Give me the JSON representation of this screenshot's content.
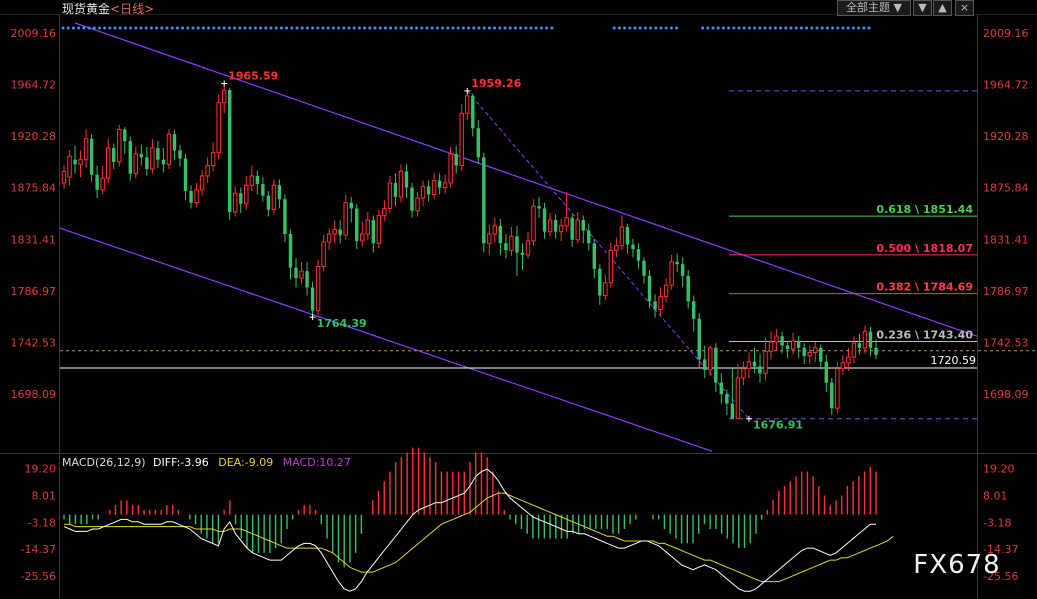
{
  "header": {
    "instrument": "现货黄金",
    "period": "<日线>",
    "theme_label": "全部主题",
    "theme_arrow": "▼",
    "btn_sort_desc": "▼",
    "btn_sort_asc": "▲",
    "btn_close": "×"
  },
  "watermark": "FX678",
  "colors": {
    "up": "#ff3030",
    "down": "#36c06a",
    "channel": "#8a3dff",
    "axis_text": "#e03a3a",
    "fib_0618": "#47d147",
    "fib_0500": "#ff2d5a",
    "fib_0382": "#ff3f3f",
    "fib_0236": "#bbbbbb",
    "diff_line": "#ffffff",
    "dea_line": "#e6d62a",
    "background": "#000000"
  },
  "chart_data": [
    {
      "type": "candlestick",
      "title": "现货黄金<日线>",
      "y_axis_labels": [
        "2009.16",
        "1964.72",
        "1920.28",
        "1875.84",
        "1831.41",
        "1786.97",
        "1742.53",
        "1698.09"
      ],
      "ylim": [
        1650,
        2022
      ],
      "annotations": {
        "high_a": "1965.59",
        "high_b": "1959.26",
        "low_a": "1764.39",
        "low_b": "1676.91",
        "price_line": "1720.59"
      },
      "fibonacci": [
        {
          "label": "0.618 \\ 1851.44",
          "value": 1851.44
        },
        {
          "label": "0.500 \\ 1818.07",
          "value": 1818.07
        },
        {
          "label": "0.382 \\ 1784.69",
          "value": 1784.69
        },
        {
          "label": "0.236 \\ 1743.40",
          "value": 1743.4
        }
      ],
      "fib_top": 1959.26,
      "fib_bottom": 1676.91,
      "dashed_price": 1735.5,
      "candles": [
        [
          1880,
          1890,
          1875,
          1895
        ],
        [
          1885,
          1903,
          1878,
          1908
        ],
        [
          1900,
          1896,
          1888,
          1912
        ],
        [
          1896,
          1900,
          1885,
          1908
        ],
        [
          1900,
          1918,
          1893,
          1926
        ],
        [
          1918,
          1887,
          1881,
          1922
        ],
        [
          1887,
          1874,
          1867,
          1895
        ],
        [
          1874,
          1884,
          1870,
          1895
        ],
        [
          1884,
          1910,
          1880,
          1918
        ],
        [
          1910,
          1898,
          1892,
          1914
        ],
        [
          1898,
          1926,
          1894,
          1930
        ],
        [
          1926,
          1916,
          1905,
          1928
        ],
        [
          1916,
          1888,
          1882,
          1920
        ],
        [
          1888,
          1905,
          1884,
          1911
        ],
        [
          1905,
          1902,
          1895,
          1913
        ],
        [
          1902,
          1892,
          1886,
          1911
        ],
        [
          1892,
          1910,
          1888,
          1918
        ],
        [
          1910,
          1900,
          1893,
          1916
        ],
        [
          1900,
          1896,
          1889,
          1910
        ],
        [
          1896,
          1922,
          1892,
          1926
        ],
        [
          1922,
          1908,
          1900,
          1926
        ],
        [
          1908,
          1901,
          1894,
          1913
        ],
        [
          1901,
          1873,
          1865,
          1905
        ],
        [
          1873,
          1863,
          1858,
          1878
        ],
        [
          1863,
          1874,
          1859,
          1880
        ],
        [
          1874,
          1886,
          1869,
          1891
        ],
        [
          1886,
          1895,
          1880,
          1902
        ],
        [
          1895,
          1906,
          1890,
          1915
        ],
        [
          1906,
          1949,
          1900,
          1956
        ],
        [
          1949,
          1960,
          1940,
          1965.59
        ],
        [
          1960,
          1855,
          1848,
          1962
        ],
        [
          1855,
          1871,
          1851,
          1877
        ],
        [
          1871,
          1862,
          1854,
          1876
        ],
        [
          1862,
          1878,
          1857,
          1886
        ],
        [
          1878,
          1886,
          1873,
          1895
        ],
        [
          1886,
          1879,
          1870,
          1891
        ],
        [
          1879,
          1869,
          1864,
          1885
        ],
        [
          1869,
          1857,
          1851,
          1873
        ],
        [
          1857,
          1878,
          1853,
          1883
        ],
        [
          1878,
          1866,
          1858,
          1883
        ],
        [
          1866,
          1836,
          1829,
          1870
        ],
        [
          1836,
          1807,
          1797,
          1840
        ],
        [
          1807,
          1798,
          1790,
          1815
        ],
        [
          1798,
          1804,
          1793,
          1812
        ],
        [
          1804,
          1790,
          1783,
          1812
        ],
        [
          1790,
          1770,
          1764.39,
          1795
        ],
        [
          1770,
          1808,
          1766,
          1814
        ],
        [
          1808,
          1829,
          1804,
          1835
        ],
        [
          1829,
          1836,
          1822,
          1841
        ],
        [
          1836,
          1840,
          1828,
          1848
        ],
        [
          1840,
          1835,
          1828,
          1848
        ],
        [
          1835,
          1863,
          1831,
          1870
        ],
        [
          1863,
          1858,
          1846,
          1868
        ],
        [
          1858,
          1830,
          1823,
          1862
        ],
        [
          1830,
          1836,
          1825,
          1847
        ],
        [
          1836,
          1848,
          1831,
          1855
        ],
        [
          1848,
          1828,
          1820,
          1852
        ],
        [
          1828,
          1852,
          1824,
          1857
        ],
        [
          1852,
          1858,
          1847,
          1865
        ],
        [
          1858,
          1880,
          1854,
          1886
        ],
        [
          1880,
          1868,
          1860,
          1888
        ],
        [
          1868,
          1890,
          1863,
          1896
        ],
        [
          1890,
          1876,
          1867,
          1896
        ],
        [
          1876,
          1856,
          1850,
          1880
        ],
        [
          1856,
          1867,
          1851,
          1872
        ],
        [
          1867,
          1877,
          1860,
          1882
        ],
        [
          1877,
          1870,
          1864,
          1882
        ],
        [
          1870,
          1882,
          1866,
          1889
        ],
        [
          1882,
          1876,
          1870,
          1888
        ],
        [
          1876,
          1880,
          1871,
          1887
        ],
        [
          1880,
          1905,
          1876,
          1911
        ],
        [
          1905,
          1895,
          1888,
          1912
        ],
        [
          1895,
          1940,
          1890,
          1948
        ],
        [
          1940,
          1955,
          1934,
          1959.26
        ],
        [
          1955,
          1927,
          1920,
          1957
        ],
        [
          1927,
          1902,
          1896,
          1934
        ],
        [
          1902,
          1828,
          1820,
          1906
        ],
        [
          1828,
          1836,
          1818,
          1844
        ],
        [
          1836,
          1843,
          1829,
          1850
        ],
        [
          1843,
          1828,
          1818,
          1849
        ],
        [
          1828,
          1822,
          1815,
          1836
        ],
        [
          1822,
          1834,
          1817,
          1842
        ],
        [
          1834,
          1820,
          1800,
          1843
        ],
        [
          1820,
          1818,
          1805,
          1828
        ],
        [
          1818,
          1830,
          1815,
          1838
        ],
        [
          1830,
          1860,
          1826,
          1866
        ],
        [
          1860,
          1858,
          1850,
          1868
        ],
        [
          1858,
          1838,
          1832,
          1863
        ],
        [
          1838,
          1848,
          1834,
          1854
        ],
        [
          1848,
          1838,
          1832,
          1853
        ],
        [
          1838,
          1843,
          1830,
          1849
        ],
        [
          1843,
          1850,
          1838,
          1872
        ],
        [
          1850,
          1831,
          1825,
          1853
        ],
        [
          1831,
          1848,
          1828,
          1855
        ],
        [
          1848,
          1839,
          1828,
          1852
        ],
        [
          1839,
          1828,
          1822,
          1845
        ],
        [
          1828,
          1806,
          1798,
          1832
        ],
        [
          1806,
          1783,
          1775,
          1810
        ],
        [
          1783,
          1794,
          1779,
          1801
        ],
        [
          1794,
          1822,
          1790,
          1829
        ],
        [
          1822,
          1826,
          1816,
          1833
        ],
        [
          1826,
          1842,
          1822,
          1852
        ],
        [
          1842,
          1827,
          1819,
          1845
        ],
        [
          1827,
          1823,
          1816,
          1832
        ],
        [
          1823,
          1813,
          1806,
          1828
        ],
        [
          1813,
          1800,
          1793,
          1816
        ],
        [
          1800,
          1778,
          1772,
          1805
        ],
        [
          1778,
          1771,
          1764,
          1784
        ],
        [
          1771,
          1782,
          1766,
          1790
        ],
        [
          1782,
          1792,
          1777,
          1798
        ],
        [
          1792,
          1812,
          1788,
          1818
        ],
        [
          1812,
          1810,
          1803,
          1819
        ],
        [
          1810,
          1800,
          1790,
          1816
        ],
        [
          1800,
          1778,
          1772,
          1805
        ],
        [
          1778,
          1763,
          1752,
          1783
        ],
        [
          1763,
          1728,
          1720,
          1768
        ],
        [
          1728,
          1719,
          1712,
          1740
        ],
        [
          1719,
          1738,
          1714,
          1740
        ],
        [
          1738,
          1708,
          1700,
          1742
        ],
        [
          1708,
          1698,
          1690,
          1716
        ],
        [
          1698,
          1690,
          1680,
          1702
        ],
        [
          1690,
          1677,
          1676.91,
          1720
        ],
        [
          1677,
          1712,
          1676.91,
          1724
        ],
        [
          1712,
          1720,
          1706,
          1726
        ],
        [
          1720,
          1726,
          1712,
          1734
        ],
        [
          1726,
          1722,
          1716,
          1738
        ],
        [
          1722,
          1716,
          1708,
          1733
        ],
        [
          1716,
          1735,
          1710,
          1746
        ],
        [
          1735,
          1743,
          1728,
          1752
        ],
        [
          1743,
          1748,
          1736,
          1754
        ],
        [
          1748,
          1740,
          1733,
          1752
        ],
        [
          1740,
          1737,
          1729,
          1744
        ],
        [
          1737,
          1744,
          1732,
          1751
        ],
        [
          1744,
          1738,
          1729,
          1748
        ],
        [
          1738,
          1731,
          1724,
          1742
        ],
        [
          1731,
          1734,
          1724,
          1740
        ],
        [
          1734,
          1738,
          1726,
          1743
        ],
        [
          1738,
          1726,
          1719,
          1741
        ],
        [
          1726,
          1708,
          1700,
          1732
        ],
        [
          1708,
          1686,
          1680,
          1712
        ],
        [
          1686,
          1720,
          1682,
          1726
        ],
        [
          1720,
          1725,
          1715,
          1732
        ],
        [
          1725,
          1730,
          1718,
          1738
        ],
        [
          1730,
          1742,
          1725,
          1748
        ],
        [
          1742,
          1738,
          1732,
          1750
        ],
        [
          1738,
          1752,
          1733,
          1757
        ],
        [
          1752,
          1738,
          1731,
          1756
        ],
        [
          1738,
          1732,
          1728,
          1745
        ]
      ]
    },
    {
      "type": "macd",
      "title": "MACD(26,12,9)",
      "legend": [
        {
          "name": "DIFF",
          "value_text": "-3.96"
        },
        {
          "name": "DEA",
          "value_text": "-9.09"
        },
        {
          "name": "MACD",
          "value_text": "10.27"
        }
      ],
      "y_axis_labels": [
        "19.20",
        "8.01",
        "-3.18",
        "-14.37",
        "-25.56"
      ],
      "ylim": [
        -34,
        22
      ],
      "diff": [
        -5,
        -6,
        -7,
        -7,
        -7,
        -6,
        -6,
        -5,
        -4,
        -3,
        -2,
        -2,
        -3,
        -3,
        -4,
        -4,
        -4,
        -4,
        -3,
        -3,
        -4,
        -5,
        -6,
        -8,
        -10,
        -11,
        -12,
        -13,
        -6,
        -3,
        -8,
        -11,
        -14,
        -16,
        -17,
        -18,
        -19,
        -19,
        -19,
        -17,
        -15,
        -13,
        -12,
        -12,
        -13,
        -16,
        -20,
        -24,
        -28,
        -31,
        -32,
        -31,
        -28,
        -24,
        -21,
        -18,
        -15,
        -12,
        -9,
        -6,
        -3,
        0,
        2,
        3,
        4,
        5,
        5,
        6,
        7,
        8,
        9,
        12,
        16,
        18,
        19,
        17,
        14,
        10,
        7,
        5,
        3,
        1,
        -1,
        -2,
        -3,
        -4,
        -5,
        -6,
        -7,
        -7,
        -8,
        -8,
        -9,
        -10,
        -11,
        -12,
        -13,
        -14,
        -14,
        -13,
        -12,
        -11,
        -11,
        -12,
        -13,
        -15,
        -17,
        -19,
        -21,
        -22,
        -23,
        -22,
        -21,
        -22,
        -23,
        -25,
        -27,
        -29,
        -31,
        -32,
        -32,
        -31,
        -29,
        -27,
        -25,
        -23,
        -21,
        -19,
        -17,
        -15,
        -14,
        -14,
        -15,
        -16,
        -17,
        -16,
        -14,
        -12,
        -10,
        -8,
        -6,
        -4,
        -4
      ],
      "dea": [
        -4,
        -4,
        -5,
        -5,
        -5,
        -5,
        -5,
        -5,
        -5,
        -5,
        -5,
        -5,
        -5,
        -5,
        -5,
        -5,
        -5,
        -5,
        -5,
        -5,
        -5,
        -5,
        -5,
        -6,
        -6,
        -6,
        -6,
        -7,
        -7,
        -6,
        -6,
        -6,
        -7,
        -8,
        -9,
        -10,
        -11,
        -12,
        -13,
        -14,
        -14,
        -14,
        -14,
        -14,
        -14,
        -14,
        -15,
        -16,
        -18,
        -20,
        -22,
        -23,
        -24,
        -24,
        -24,
        -23,
        -22,
        -21,
        -20,
        -18,
        -16,
        -14,
        -12,
        -10,
        -8,
        -6,
        -4,
        -3,
        -2,
        -1,
        0,
        1,
        3,
        5,
        7,
        8,
        9,
        9,
        8,
        7,
        6,
        5,
        4,
        3,
        2,
        1,
        0,
        -1,
        -2,
        -3,
        -4,
        -5,
        -6,
        -7,
        -8,
        -9,
        -9,
        -10,
        -11,
        -11,
        -11,
        -11,
        -11,
        -11,
        -12,
        -12,
        -13,
        -14,
        -15,
        -16,
        -17,
        -18,
        -19,
        -19,
        -20,
        -21,
        -22,
        -23,
        -24,
        -25,
        -26,
        -27,
        -28,
        -28,
        -28,
        -28,
        -27,
        -26,
        -25,
        -24,
        -23,
        -22,
        -21,
        -20,
        -19,
        -19,
        -18,
        -18,
        -17,
        -16,
        -15,
        -14,
        -13,
        -12,
        -11,
        -9
      ]
    }
  ]
}
